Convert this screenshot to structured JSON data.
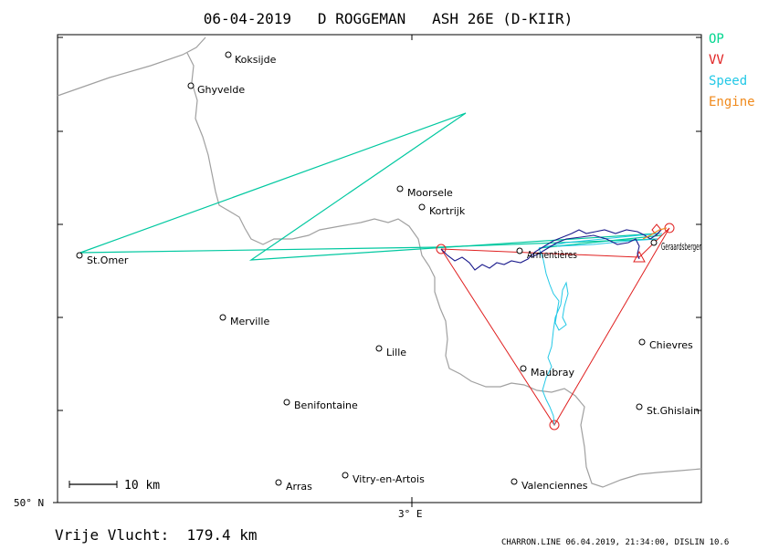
{
  "title": "06-04-2019   D ROGGEMAN   ASH 26E (D-KIIR)",
  "legend": [
    {
      "label": "OP",
      "color": "#00d68f"
    },
    {
      "label": "VV",
      "color": "#e02020"
    },
    {
      "label": "Speed",
      "color": "#22c8e6"
    },
    {
      "label": "Engine",
      "color": "#f08a1c"
    }
  ],
  "places": [
    {
      "name": "Koksijde"
    },
    {
      "name": "Ghyvelde"
    },
    {
      "name": "Moorsele"
    },
    {
      "name": "Kortrijk"
    },
    {
      "name": "St.Omer"
    },
    {
      "name": "Geraardsbergen"
    },
    {
      "name": "Armentières"
    },
    {
      "name": "Merville"
    },
    {
      "name": "Lille"
    },
    {
      "name": "Chievres"
    },
    {
      "name": "Maubray"
    },
    {
      "name": "Benifontaine"
    },
    {
      "name": "St.Ghislain"
    },
    {
      "name": "Arras"
    },
    {
      "name": "Vitry-en-Artois"
    },
    {
      "name": "Valenciennes"
    }
  ],
  "scale_label": "10 km",
  "axis": {
    "lat_label": "50° N",
    "lon_label": "3° E"
  },
  "distance_label": "Vrije Vlucht:  179.4 km",
  "footer": "CHARRON.LINE 06.04.2019, 21:34:00, DISLIN 10.6",
  "colors": {
    "border": "#a0a0a0",
    "task": "#e02020",
    "op": "#00c8a0",
    "speed": "#22c8e6",
    "track": "#1a1a8c"
  }
}
